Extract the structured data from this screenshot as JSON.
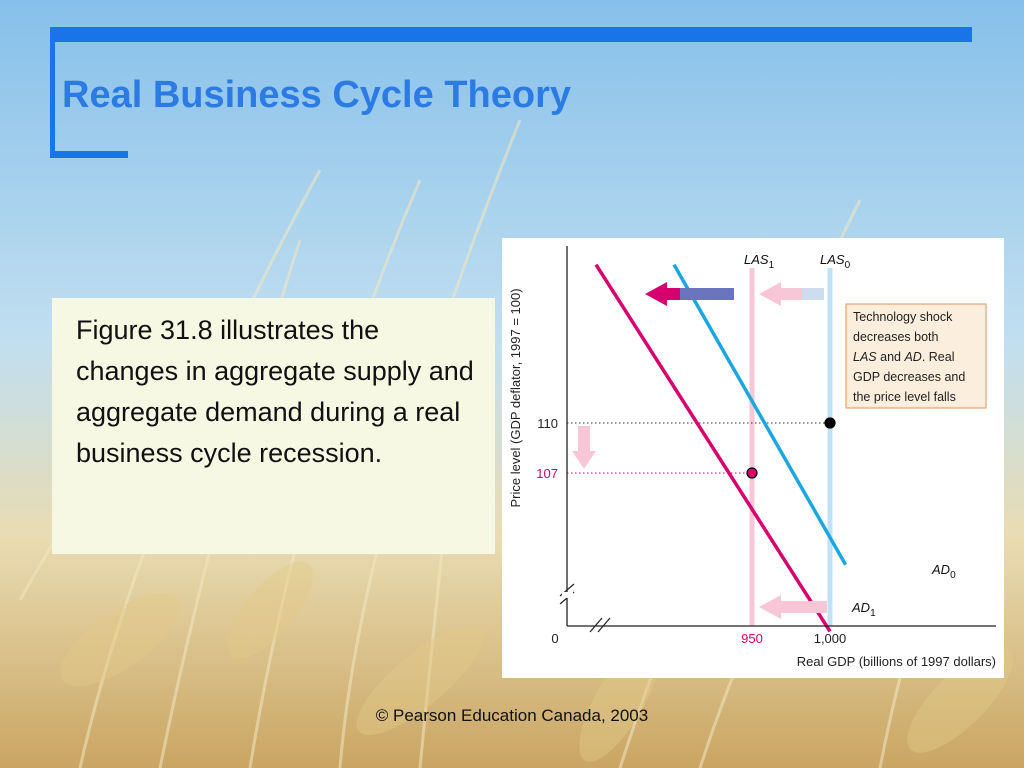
{
  "slide": {
    "title": "Real Business Cycle Theory",
    "body_text": "Figure 31.8 illustrates the changes in aggregate supply and aggregate demand during a real business cycle recession.",
    "footer": "© Pearson Education Canada, 2003"
  },
  "colors": {
    "accent_blue": "#1a73e8",
    "title_text": "#2c7be5",
    "textbox_bg": "#f7f8e4",
    "magenta": "#d6006e",
    "cyan": "#1aa7e0",
    "las1_pale": "#f7c6d7",
    "las0_pale": "#bfe2f5"
  },
  "chart_data": {
    "type": "line",
    "xlabel": "Real GDP (billions of 1997 dollars)",
    "ylabel": "Price level (GDP deflator, 1997 = 100)",
    "origin_label": "0",
    "x_ticks": [
      {
        "value": 950,
        "label": "950",
        "color": "#d6006e"
      },
      {
        "value": 1000,
        "label": "1,000",
        "color": "#222222"
      }
    ],
    "y_ticks": [
      {
        "value": 110,
        "label": "110",
        "color": "#222222"
      },
      {
        "value": 107,
        "label": "107",
        "color": "#d6006e"
      }
    ],
    "series": [
      {
        "name": "AD0",
        "label_main": "AD",
        "label_sub": "0",
        "kind": "demand",
        "color": "#1aa7e0",
        "x": [
          900,
          1010
        ],
        "y": [
          119.5,
          101.5
        ]
      },
      {
        "name": "AD1",
        "label_main": "AD",
        "label_sub": "1",
        "kind": "demand",
        "color": "#d6006e",
        "x": [
          850,
          1000
        ],
        "y": [
          119.5,
          97.5
        ]
      },
      {
        "name": "LAS0",
        "label_main": "LAS",
        "label_sub": "0",
        "kind": "vertical",
        "color": "#bfe2f5",
        "x": [
          1000,
          1000
        ],
        "y": [
          97.5,
          119.5
        ]
      },
      {
        "name": "LAS1",
        "label_main": "LAS",
        "label_sub": "1",
        "kind": "vertical",
        "color": "#f7c6d7",
        "x": [
          950,
          950
        ],
        "y": [
          97.5,
          119.5
        ]
      }
    ],
    "points": [
      {
        "x": 1000,
        "y": 110,
        "fill": "#000000"
      },
      {
        "x": 950,
        "y": 107,
        "fill": "#d6006e"
      }
    ],
    "annotation": {
      "lines": [
        "Technology shock",
        "decreases both",
        "LAS and AD. Real",
        "GDP decreases and",
        "the price level falls"
      ]
    },
    "grid": false,
    "axis_breaks": true
  }
}
